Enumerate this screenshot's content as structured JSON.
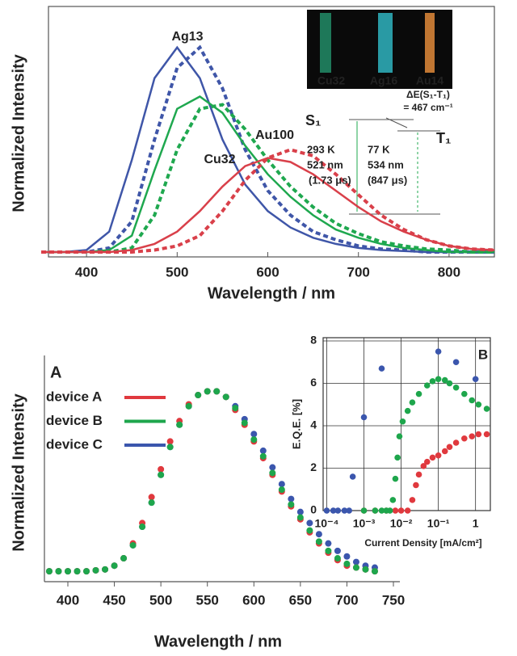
{
  "chart_data": [
    {
      "type": "line",
      "xlabel": "Wavelength / nm",
      "ylabel": "Normalized Intensity",
      "x": [
        350,
        375,
        400,
        425,
        450,
        475,
        500,
        525,
        550,
        575,
        600,
        625,
        650,
        675,
        700,
        725,
        750,
        775,
        800,
        825,
        850
      ],
      "series": [
        {
          "name": "Ag13",
          "color": "#3f56a8",
          "dash": false,
          "values": [
            0,
            0,
            0.01,
            0.1,
            0.45,
            0.85,
            1.0,
            0.85,
            0.55,
            0.33,
            0.2,
            0.12,
            0.07,
            0.04,
            0.02,
            0.01,
            0.005,
            0,
            0,
            0,
            0
          ]
        },
        {
          "color": "#3f56a8",
          "dash": true,
          "values": [
            0,
            0,
            0,
            0.02,
            0.15,
            0.55,
            0.9,
            1.0,
            0.8,
            0.5,
            0.3,
            0.18,
            0.1,
            0.06,
            0.03,
            0.015,
            0.01,
            0,
            0,
            0,
            0
          ]
        },
        {
          "name": "Cu32",
          "color": "#1fa84f",
          "dash": false,
          "values": [
            0,
            0,
            0,
            0.01,
            0.08,
            0.4,
            0.7,
            0.76,
            0.68,
            0.52,
            0.38,
            0.27,
            0.18,
            0.11,
            0.07,
            0.04,
            0.02,
            0.01,
            0,
            0,
            0
          ]
        },
        {
          "color": "#1fa84f",
          "dash": true,
          "values": [
            0,
            0,
            0,
            0,
            0.02,
            0.18,
            0.5,
            0.7,
            0.72,
            0.6,
            0.45,
            0.32,
            0.22,
            0.14,
            0.09,
            0.05,
            0.03,
            0.015,
            0.01,
            0,
            0
          ]
        },
        {
          "name": "Au100",
          "color": "#d9404a",
          "dash": false,
          "values": [
            0,
            0,
            0,
            0,
            0.01,
            0.04,
            0.1,
            0.2,
            0.32,
            0.42,
            0.46,
            0.44,
            0.38,
            0.3,
            0.22,
            0.15,
            0.1,
            0.06,
            0.03,
            0.015,
            0.01
          ]
        },
        {
          "color": "#d9404a",
          "dash": true,
          "values": [
            0,
            0,
            0,
            0,
            0,
            0.01,
            0.03,
            0.08,
            0.2,
            0.35,
            0.46,
            0.5,
            0.47,
            0.38,
            0.28,
            0.18,
            0.11,
            0.06,
            0.03,
            0.015,
            0.01
          ]
        }
      ],
      "xlim": [
        358,
        850
      ],
      "xticks": [
        400,
        500,
        600,
        700,
        800
      ],
      "ylim": [
        0,
        1.2
      ],
      "photo_labels": [
        "Cu32",
        "Ag16",
        "Au14"
      ],
      "annotations": [
        "S₁",
        "T₁",
        "ΔE(S₁-T₁)",
        "= 467 cm⁻¹",
        "293 K",
        "521 nm",
        "(1.73 μs)",
        "77 K",
        "534 nm",
        "(847 μs)"
      ]
    },
    {
      "type": "line",
      "style": "markers",
      "xlabel": "Wavelength / nm",
      "ylabel": "Normalized Intensity",
      "panel_label": "A",
      "x": [
        380,
        390,
        400,
        410,
        420,
        430,
        440,
        450,
        460,
        470,
        480,
        490,
        500,
        510,
        520,
        530,
        540,
        550,
        560,
        570,
        580,
        590,
        600,
        610,
        620,
        630,
        640,
        650,
        660,
        670,
        680,
        690,
        700,
        710,
        720,
        730
      ],
      "series": [
        {
          "name": "device A",
          "color": "#e0393e",
          "values": [
            0.03,
            0.03,
            0.03,
            0.03,
            0.03,
            0.035,
            0.04,
            0.06,
            0.1,
            0.18,
            0.29,
            0.43,
            0.58,
            0.73,
            0.84,
            0.93,
            0.98,
            1.0,
            1.0,
            0.97,
            0.9,
            0.82,
            0.73,
            0.64,
            0.55,
            0.46,
            0.38,
            0.31,
            0.24,
            0.18,
            0.13,
            0.09,
            0.06,
            0.05,
            0.04,
            0.03
          ]
        },
        {
          "name": "device B",
          "color": "#1ea64c",
          "values": [
            0.03,
            0.03,
            0.03,
            0.03,
            0.03,
            0.035,
            0.04,
            0.06,
            0.1,
            0.17,
            0.27,
            0.4,
            0.55,
            0.7,
            0.82,
            0.92,
            0.98,
            1.0,
            1.0,
            0.97,
            0.91,
            0.83,
            0.74,
            0.65,
            0.56,
            0.47,
            0.39,
            0.32,
            0.25,
            0.19,
            0.14,
            0.1,
            0.07,
            0.05,
            0.04,
            0.03
          ]
        },
        {
          "name": "device C",
          "color": "#3b56ad",
          "values": [
            0.03,
            0.03,
            0.03,
            0.03,
            0.03,
            0.035,
            0.04,
            0.06,
            0.1,
            0.17,
            0.27,
            0.4,
            0.55,
            0.7,
            0.82,
            0.92,
            0.98,
            1.0,
            1.0,
            0.97,
            0.92,
            0.85,
            0.77,
            0.68,
            0.59,
            0.5,
            0.42,
            0.35,
            0.29,
            0.23,
            0.18,
            0.14,
            0.11,
            0.08,
            0.06,
            0.05
          ]
        }
      ],
      "xlim": [
        375,
        750
      ],
      "xticks": [
        400,
        450,
        500,
        550,
        600,
        650,
        700,
        750
      ],
      "ylim": [
        0,
        1.15
      ],
      "legend": "upper left"
    },
    {
      "type": "scatter",
      "xlog": true,
      "grid": true,
      "panel_label": "B",
      "xlabel": "Current Density [mA/cm²]",
      "ylabel": "E.Q.E. [%]",
      "series": [
        {
          "color": "#3b56ad",
          "x": [
            0.0001,
            0.00015,
            0.0002,
            0.0003,
            0.0004,
            0.0005,
            0.001,
            0.003,
            0.1,
            0.3,
            1
          ],
          "values": [
            0,
            0,
            0,
            0,
            0,
            1.6,
            4.4,
            6.7,
            7.5,
            7.0,
            6.2
          ]
        },
        {
          "color": "#e0393e",
          "x": [
            0.001,
            0.002,
            0.004,
            0.007,
            0.01,
            0.015,
            0.02,
            0.025,
            0.03,
            0.04,
            0.05,
            0.07,
            0.1,
            0.15,
            0.2,
            0.3,
            0.5,
            0.8,
            1.2,
            2
          ],
          "values": [
            0,
            0,
            0,
            0,
            0,
            0,
            0.5,
            1.2,
            1.7,
            2.1,
            2.3,
            2.5,
            2.6,
            2.8,
            3.0,
            3.2,
            3.4,
            3.5,
            3.6,
            3.6
          ]
        },
        {
          "color": "#1ea64c",
          "x": [
            0.001,
            0.002,
            0.003,
            0.004,
            0.005,
            0.006,
            0.007,
            0.008,
            0.009,
            0.011,
            0.015,
            0.02,
            0.03,
            0.05,
            0.07,
            0.1,
            0.15,
            0.2,
            0.3,
            0.5,
            0.8,
            1.2,
            2
          ],
          "values": [
            0,
            0,
            0,
            0,
            0,
            0.5,
            1.5,
            2.5,
            3.5,
            4.2,
            4.7,
            5.1,
            5.5,
            5.9,
            6.1,
            6.2,
            6.15,
            6.0,
            5.8,
            5.5,
            5.2,
            5.0,
            4.8
          ]
        }
      ],
      "xlim": [
        8e-05,
        2.5
      ],
      "xticks": [
        {
          "value": 0.0001,
          "label": "10⁻⁴"
        },
        {
          "value": 0.001,
          "label": "10⁻³"
        },
        {
          "value": 0.01,
          "label": "10⁻²"
        },
        {
          "value": 0.1,
          "label": "10⁻¹"
        },
        1
      ],
      "ylim": [
        0,
        8
      ],
      "yticks": [
        0,
        2,
        4,
        6,
        8
      ]
    }
  ]
}
